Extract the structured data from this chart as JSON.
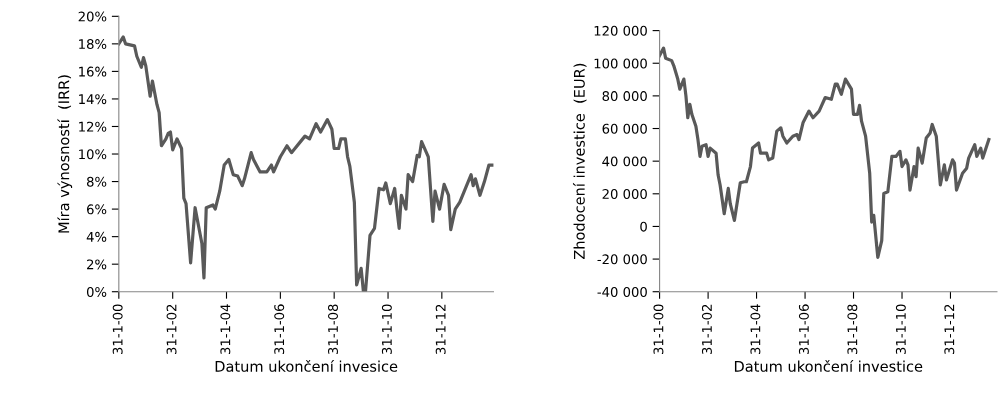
{
  "chart_data": [
    {
      "type": "line",
      "xlabel": "Datum ukončení invesice",
      "ylabel": "Míra výnosností  (IRR)",
      "series": [
        {
          "color": "#595959",
          "x": [
            "2000-01",
            "2000-03",
            "2000-04",
            "2000-08",
            "2000-09",
            "2000-11",
            "2000-12",
            "2001-01",
            "2001-03",
            "2001-04",
            "2001-06",
            "2001-07",
            "2001-08",
            "2001-10",
            "2001-11",
            "2001-12",
            "2002-01",
            "2002-03",
            "2002-05",
            "2002-06",
            "2002-07",
            "2002-09",
            "2002-11",
            "2003-02",
            "2003-03",
            "2003-04",
            "2003-07",
            "2003-08",
            "2003-10",
            "2003-12",
            "2004-02",
            "2004-04",
            "2004-06",
            "2004-08",
            "2004-09",
            "2004-12",
            "2005-01",
            "2005-04",
            "2005-07",
            "2005-09",
            "2005-10",
            "2006-01",
            "2006-04",
            "2006-06",
            "2006-07",
            "2006-10",
            "2006-12",
            "2007-02",
            "2007-05",
            "2007-07",
            "2007-10",
            "2007-12",
            "2008-01",
            "2008-03",
            "2008-04",
            "2008-06",
            "2008-07",
            "2008-08",
            "2008-10",
            "2008-11",
            "2009-01",
            "2009-02",
            "2009-03",
            "2009-05",
            "2009-07",
            "2009-09",
            "2009-11",
            "2009-12",
            "2010-02",
            "2010-04",
            "2010-05",
            "2010-06",
            "2010-07",
            "2010-09",
            "2010-10",
            "2010-12",
            "2011-02",
            "2011-03",
            "2011-04",
            "2011-07",
            "2011-09",
            "2011-10",
            "2011-12",
            "2012-02",
            "2012-04",
            "2012-05",
            "2012-07",
            "2012-09",
            "2012-11",
            "2013-02",
            "2013-03",
            "2013-04",
            "2013-06",
            "2013-08",
            "2013-10",
            "2013-12"
          ],
          "values": [
            18.0,
            18.5,
            18.0,
            17.85,
            17.1,
            16.3,
            17.0,
            16.4,
            14.2,
            15.3,
            13.6,
            13.0,
            10.6,
            11.1,
            11.5,
            11.6,
            10.3,
            11.1,
            10.4,
            6.8,
            6.4,
            2.1,
            6.1,
            3.5,
            1.0,
            6.1,
            6.3,
            6.0,
            7.3,
            9.2,
            9.6,
            8.5,
            8.4,
            7.7,
            8.2,
            10.1,
            9.6,
            8.7,
            8.7,
            9.2,
            8.7,
            9.8,
            10.6,
            10.1,
            10.3,
            10.9,
            11.3,
            11.1,
            12.2,
            11.6,
            12.5,
            11.8,
            10.4,
            10.4,
            11.1,
            11.1,
            9.8,
            9.1,
            6.5,
            0.5,
            1.7,
            0,
            0,
            4.1,
            4.6,
            7.5,
            7.4,
            7.9,
            6.4,
            7.5,
            6.0,
            4.6,
            7.0,
            6.0,
            8.5,
            8.0,
            9.9,
            9.8,
            10.9,
            9.8,
            5.1,
            7.3,
            6.0,
            7.8,
            7.0,
            4.5,
            6.0,
            6.5,
            7.3,
            8.5,
            7.7,
            8.2,
            7.0,
            8.0,
            9.2,
            9.2
          ]
        }
      ],
      "xlim": [
        "2000-01",
        "2013-12"
      ],
      "xticks": [
        {
          "value": "2000-01",
          "label": "31-1-00"
        },
        {
          "value": "2002-01",
          "label": "31-1-02"
        },
        {
          "value": "2004-01",
          "label": "31-1-04"
        },
        {
          "value": "2006-01",
          "label": "31-1-06"
        },
        {
          "value": "2008-01",
          "label": "31-1-08"
        },
        {
          "value": "2010-01",
          "label": "31-1-10"
        },
        {
          "value": "2012-01",
          "label": "31-1-12"
        }
      ],
      "ylim": [
        0,
        20
      ],
      "yticks": [
        {
          "value": 0,
          "label": "0%"
        },
        {
          "value": 2,
          "label": "2%"
        },
        {
          "value": 4,
          "label": "4%"
        },
        {
          "value": 6,
          "label": "6%"
        },
        {
          "value": 8,
          "label": "8%"
        },
        {
          "value": 10,
          "label": "10%"
        },
        {
          "value": 12,
          "label": "12%"
        },
        {
          "value": 14,
          "label": "14%"
        },
        {
          "value": 16,
          "label": "16%"
        },
        {
          "value": 18,
          "label": "18%"
        },
        {
          "value": 20,
          "label": "20%"
        }
      ],
      "grid": false,
      "line_style": "solid",
      "marker": "none"
    },
    {
      "type": "line",
      "xlabel": "Datum ukončení investice",
      "ylabel": "Zhodocení investice  (EUR)",
      "series": [
        {
          "color": "#595959",
          "x": [
            "2000-01",
            "2000-03",
            "2000-04",
            "2000-07",
            "2000-08",
            "2000-10",
            "2000-11",
            "2001-01",
            "2001-02",
            "2001-03",
            "2001-04",
            "2001-05",
            "2001-07",
            "2001-08",
            "2001-09",
            "2001-10",
            "2001-12",
            "2002-01",
            "2002-02",
            "2002-05",
            "2002-06",
            "2002-07",
            "2002-09",
            "2002-11",
            "2002-12",
            "2003-02",
            "2003-05",
            "2003-07",
            "2003-08",
            "2003-10",
            "2003-11",
            "2004-02",
            "2004-03",
            "2004-06",
            "2004-07",
            "2004-09",
            "2004-11",
            "2005-01",
            "2005-02",
            "2005-04",
            "2005-07",
            "2005-09",
            "2005-10",
            "2005-12",
            "2006-03",
            "2006-05",
            "2006-08",
            "2006-11",
            "2007-02",
            "2007-04",
            "2007-05",
            "2007-07",
            "2007-09",
            "2007-12",
            "2008-01",
            "2008-03",
            "2008-04",
            "2008-05",
            "2008-07",
            "2008-09",
            "2008-10",
            "2008-11",
            "2009-01",
            "2009-03",
            "2009-04",
            "2009-06",
            "2009-08",
            "2009-10",
            "2009-12",
            "2010-01",
            "2010-03",
            "2010-04",
            "2010-05",
            "2010-07",
            "2010-08",
            "2010-09",
            "2010-11",
            "2011-01",
            "2011-03",
            "2011-04",
            "2011-06",
            "2011-08",
            "2011-10",
            "2011-11",
            "2012-02",
            "2012-03",
            "2012-04",
            "2012-07",
            "2012-09",
            "2012-10",
            "2013-01",
            "2013-02",
            "2013-04",
            "2013-05",
            "2013-08"
          ],
          "values": [
            104700,
            109300,
            103100,
            101600,
            98600,
            90300,
            84100,
            90300,
            80000,
            66600,
            74800,
            68700,
            61400,
            53200,
            42900,
            49100,
            50100,
            42900,
            48000,
            44900,
            31500,
            25400,
            7800,
            23300,
            14000,
            3700,
            26800,
            27400,
            27400,
            36700,
            48000,
            51100,
            44900,
            44900,
            40800,
            41900,
            58400,
            60400,
            55300,
            51100,
            55300,
            56300,
            53200,
            63500,
            70700,
            66600,
            70700,
            79000,
            77900,
            87200,
            87200,
            81000,
            90300,
            84100,
            68700,
            68700,
            74200,
            64500,
            55300,
            32600,
            2700,
            6800,
            -19000,
            -8700,
            20200,
            21200,
            42900,
            42900,
            46000,
            36700,
            40800,
            37700,
            22300,
            36700,
            30500,
            48000,
            38800,
            54200,
            57300,
            62500,
            55300,
            25400,
            37700,
            28500,
            40800,
            38800,
            22300,
            32600,
            35700,
            41900,
            50100,
            42900,
            48000,
            41900,
            53200
          ]
        }
      ],
      "xlim": [
        "2000-01",
        "2013-12"
      ],
      "xticks": [
        {
          "value": "2000-01",
          "label": "31-1-00"
        },
        {
          "value": "2002-01",
          "label": "31-1-02"
        },
        {
          "value": "2004-01",
          "label": "31-1-04"
        },
        {
          "value": "2006-01",
          "label": "31-1-06"
        },
        {
          "value": "2008-01",
          "label": "31-1-08"
        },
        {
          "value": "2010-01",
          "label": "31-1-10"
        },
        {
          "value": "2012-01",
          "label": "31-1-12"
        }
      ],
      "ylim": [
        -40000,
        120000
      ],
      "yticks": [
        {
          "value": -40000,
          "label": "-40 000"
        },
        {
          "value": -20000,
          "label": "-20 000"
        },
        {
          "value": 0,
          "label": "0"
        },
        {
          "value": 20000,
          "label": "20 000"
        },
        {
          "value": 40000,
          "label": "40 000"
        },
        {
          "value": 60000,
          "label": "60 000"
        },
        {
          "value": 80000,
          "label": "80 000"
        },
        {
          "value": 100000,
          "label": "100 000"
        },
        {
          "value": 120000,
          "label": "120 000"
        }
      ],
      "grid": false,
      "line_style": "solid",
      "marker": "none"
    }
  ]
}
